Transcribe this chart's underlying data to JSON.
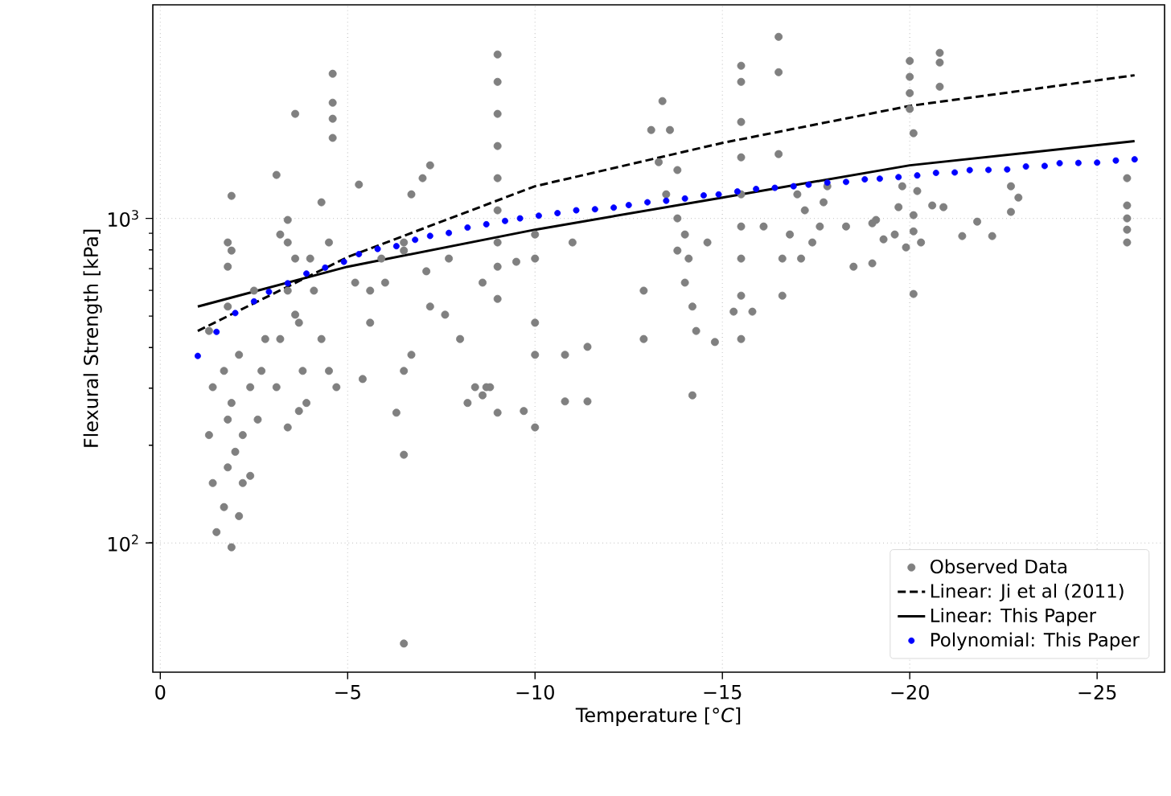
{
  "chart_data": {
    "type": "scatter",
    "xlabel": "Temperature [°*C*]",
    "ylabel": "Flexural Strength [kPa]",
    "xlim": [
      0.2,
      -26.8
    ],
    "ylim": [
      40,
      4550
    ],
    "xticks": [
      0,
      {
        "value": -5,
        "label": "−5"
      },
      {
        "value": -10,
        "label": "−10"
      },
      {
        "value": -15,
        "label": "−15"
      },
      {
        "value": -20,
        "label": "−20"
      },
      {
        "value": -25,
        "label": "−25"
      }
    ],
    "yticks": [
      {
        "value": 100,
        "label": "10$^{2}$"
      },
      {
        "value": 1000,
        "label": "10$^{3}$"
      }
    ],
    "log": "y",
    "grid": true,
    "legend": "bottom right",
    "series": [
      {
        "name": "Observed Data",
        "marker": "circle",
        "color": "#808080",
        "x": [
          -1.3,
          -1.4,
          -1.3,
          -1.4,
          -1.5,
          -1.7,
          -1.8,
          -1.8,
          -1.7,
          -1.9,
          -2.0,
          -2.2,
          -2.2,
          -2.4,
          -2.1,
          -1.8,
          -1.8,
          -1.9,
          -1.8,
          -1.9,
          -1.9,
          -2.1,
          -2.4,
          -2.6,
          -2.7,
          -2.8,
          -2.5,
          -3.1,
          -3.2,
          -3.4,
          -3.4,
          -3.1,
          -3.4,
          -3.6,
          -3.7,
          -3.8,
          -3.9,
          -3.4,
          -3.7,
          -3.2,
          -3.6,
          -4.1,
          -4.3,
          -4.5,
          -4.3,
          -4.7,
          -4.5,
          -4.0,
          -4.6,
          -4.6,
          -4.6,
          -4.6,
          -3.6,
          -5.2,
          -5.6,
          -5.4,
          -5.6,
          -6.0,
          -6.5,
          -6.7,
          -7.0,
          -6.5,
          -6.7,
          -6.5,
          -6.3,
          -6.5,
          -6.5,
          -5.9,
          -5.3,
          -7.2,
          -7.1,
          -7.2,
          -7.6,
          -8.0,
          -8.4,
          -8.6,
          -8.8,
          -8.2,
          -7.7,
          -8.6,
          -9.0,
          -9.0,
          -9.0,
          -9.0,
          -9.0,
          -9.0,
          -9.0,
          -9.0,
          -9.0,
          -9.0,
          -8.7,
          -9.5,
          -10.0,
          -9.7,
          -10.0,
          -10.0,
          -10.0,
          -10.0,
          -10.8,
          -11.4,
          -10.8,
          -11.4,
          -11.0,
          -12.9,
          -12.9,
          -13.1,
          -13.4,
          -13.6,
          -13.3,
          -13.8,
          -13.5,
          -13.8,
          -14.0,
          -14.1,
          -14.0,
          -14.2,
          -14.3,
          -14.2,
          -13.8,
          -14.6,
          -14.8,
          -15.5,
          -15.5,
          -15.5,
          -15.5,
          -15.5,
          -15.5,
          -15.5,
          -15.5,
          -15.5,
          -15.3,
          -15.8,
          -16.5,
          -16.5,
          -16.5,
          -16.8,
          -16.6,
          -16.6,
          -16.1,
          -17.0,
          -17.2,
          -17.4,
          -17.1,
          -17.6,
          -17.8,
          -17.7,
          -18.3,
          -18.5,
          -19.1,
          -19.6,
          -20.0,
          -20.0,
          -20.0,
          -20.0,
          -20.1,
          -19.8,
          -20.2,
          -20.1,
          -20.1,
          -19.9,
          -20.3,
          -20.1,
          -19.7,
          -19.0,
          -19.3,
          -19.0,
          -20.8,
          -20.8,
          -20.8,
          -20.6,
          -20.9,
          -21.4,
          -21.8,
          -22.2,
          -22.7,
          -22.9,
          -22.7,
          -25.8,
          -25.8,
          -25.8,
          -25.8,
          -25.8
        ],
        "values": [
          450,
          302,
          215,
          153,
          108,
          129,
          171,
          240,
          339,
          270,
          191,
          153,
          215,
          302,
          380,
          535,
          843,
          796,
          710,
          1173,
          97,
          121,
          161,
          240,
          339,
          425,
          599,
          302,
          425,
          599,
          843,
          1361,
          989,
          752,
          477,
          339,
          270,
          227,
          255,
          892,
          505,
          599,
          425,
          843,
          1121,
          302,
          339,
          752,
          2790,
          2272,
          2028,
          1770,
          2099,
          634,
          599,
          320,
          477,
          634,
          843,
          1186,
          1330,
          796,
          380,
          339,
          252,
          187,
          49,
          752,
          1271,
          1457,
          687,
          535,
          505,
          425,
          302,
          285,
          302,
          270,
          752,
          634,
          843,
          3199,
          2634,
          2099,
          1671,
          1330,
          1059,
          710,
          565,
          252,
          302,
          735,
          227,
          255,
          380,
          477,
          752,
          892,
          380,
          402,
          273,
          273,
          843,
          425,
          599,
          1872,
          2298,
          1872,
          1490,
          1409,
          1186,
          1000,
          892,
          752,
          634,
          535,
          450,
          285,
          796,
          843,
          416,
          2953,
          2634,
          1982,
          1542,
          1186,
          944,
          752,
          578,
          425,
          516,
          516,
          3625,
          2820,
          1578,
          892,
          752,
          578,
          944,
          1186,
          1059,
          843,
          752,
          944,
          1256,
          1121,
          944,
          710,
          989,
          892,
          3055,
          2729,
          2431,
          2173,
          1830,
          1256,
          1214,
          1023,
          912,
          814,
          843,
          585,
          1083,
          727,
          862,
          966,
          3236,
          3021,
          2545,
          1096,
          1083,
          882,
          977,
          882,
          1256,
          1159,
          1047,
          1330,
          1096,
          1000,
          923,
          843
        ]
      },
      {
        "name": "Linear: Ji et al (2011)",
        "type": "line",
        "marker": "none",
        "line_style": "dashed",
        "color": "#000000",
        "x": [
          -1,
          -5,
          -10,
          -15,
          -20,
          -26
        ],
        "values": [
          450,
          760,
          1256,
          1708,
          2221,
          2760
        ]
      },
      {
        "name": "Linear: This Paper",
        "type": "line",
        "marker": "none",
        "line_style": "solid",
        "color": "#000000",
        "x": [
          -1,
          -5,
          -10,
          -15,
          -20,
          -26
        ],
        "values": [
          535,
          710,
          923,
          1159,
          1457,
          1730
        ]
      },
      {
        "name": "Polynomial: This Paper",
        "type": "scatter",
        "marker": "circle",
        "color": "#0000ff",
        "x": [
          -1.0,
          -1.5,
          -2.0,
          -2.5,
          -2.9,
          -3.4,
          -3.9,
          -4.4,
          -4.9,
          -5.3,
          -5.8,
          -6.3,
          -6.8,
          -7.2,
          -7.7,
          -8.2,
          -8.7,
          -9.2,
          -9.6,
          -10.1,
          -10.6,
          -11.1,
          -11.6,
          -12.1,
          -12.5,
          -13.0,
          -13.5,
          -14.0,
          -14.5,
          -14.9,
          -15.4,
          -15.9,
          -16.4,
          -16.9,
          -17.3,
          -17.8,
          -18.3,
          -18.8,
          -19.2,
          -19.7,
          -20.2,
          -20.7,
          -21.2,
          -21.6,
          -22.1,
          -22.6,
          -23.1,
          -23.6,
          -24.0,
          -24.5,
          -25.0,
          -25.5,
          -26.0
        ],
        "values": [
          377,
          447,
          511,
          555,
          594,
          631,
          676,
          705,
          735,
          776,
          805,
          821,
          859,
          883,
          902,
          937,
          959,
          982,
          1000,
          1019,
          1038,
          1059,
          1067,
          1079,
          1099,
          1121,
          1133,
          1151,
          1177,
          1185,
          1210,
          1232,
          1242,
          1256,
          1270,
          1289,
          1295,
          1319,
          1325,
          1340,
          1356,
          1381,
          1385,
          1408,
          1410,
          1415,
          1445,
          1450,
          1479,
          1482,
          1485,
          1507,
          1520
        ]
      }
    ]
  }
}
